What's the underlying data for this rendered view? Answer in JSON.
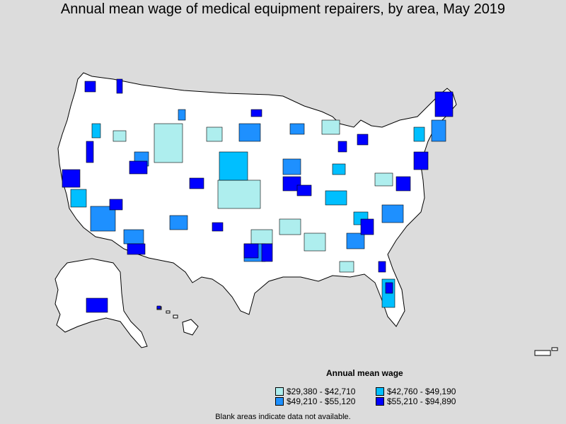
{
  "title": "Annual mean wage of medical equipment repairers, by area, May 2019",
  "legend": {
    "title": "Annual mean wage",
    "items": [
      {
        "label": "$29,380 - $42,710",
        "color": "#aeeeee"
      },
      {
        "label": "$42,760 - $49,190",
        "color": "#00bfff"
      },
      {
        "label": "$49,210 - $55,120",
        "color": "#1e90ff"
      },
      {
        "label": "$55,210 - $94,890",
        "color": "#0000ff"
      }
    ]
  },
  "footnote": "Blank areas indicate data not available.",
  "colors": {
    "background": "#dcdcdc",
    "land": "#ffffff",
    "border": "#000000"
  }
}
